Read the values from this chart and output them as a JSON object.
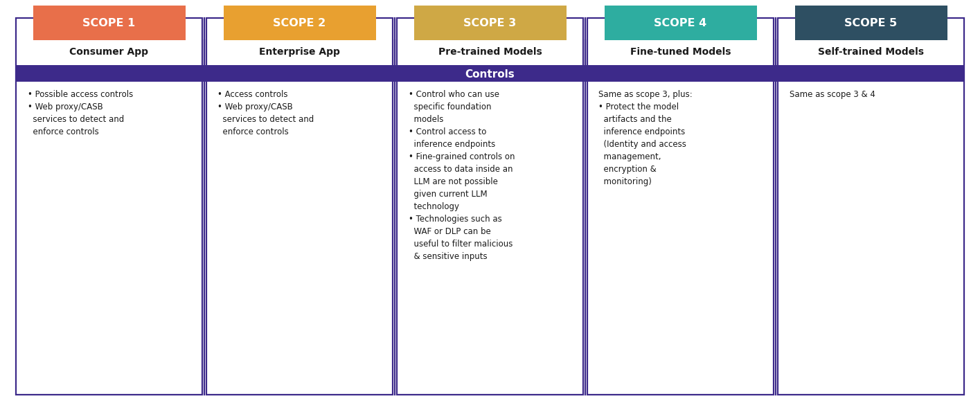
{
  "scopes": [
    {
      "label": "SCOPE 1",
      "header_color": "#E86F4A",
      "subtitle": "Consumer App",
      "content": "• Possible access controls\n• Web proxy/CASB\n  services to detect and\n  enforce controls"
    },
    {
      "label": "SCOPE 2",
      "header_color": "#E8A030",
      "subtitle": "Enterprise App",
      "content": "• Access controls\n• Web proxy/CASB\n  services to detect and\n  enforce controls"
    },
    {
      "label": "SCOPE 3",
      "header_color": "#CFA845",
      "subtitle": "Pre-trained Models",
      "content": "• Control who can use\n  specific foundation\n  models\n• Control access to\n  inference endpoints\n• Fine-grained controls on\n  access to data inside an\n  LLM are not possible\n  given current LLM\n  technology\n• Technologies such as\n  WAF or DLP can be\n  useful to filter malicious\n  & sensitive inputs"
    },
    {
      "label": "SCOPE 4",
      "header_color": "#2EADA0",
      "subtitle": "Fine-tuned Models",
      "content": "Same as scope 3, plus:\n• Protect the model\n  artifacts and the\n  inference endpoints\n  (Identity and access\n  management,\n  encryption &\n  monitoring)"
    },
    {
      "label": "SCOPE 5",
      "header_color": "#2E4F62",
      "subtitle": "Self-trained Models",
      "content": "Same as scope 3 & 4"
    }
  ],
  "controls_bar_color": "#3D2A8A",
  "controls_text": "Controls",
  "border_color": "#3D2A8A",
  "background_color": "#FFFFFF",
  "header_text_color": "#FFFFFF",
  "subtitle_text_color": "#1A1A1A",
  "content_text_color": "#1A1A1A",
  "controls_text_color": "#FFFFFF",
  "fig_width": 14.15,
  "fig_height": 5.82,
  "dpi": 100
}
